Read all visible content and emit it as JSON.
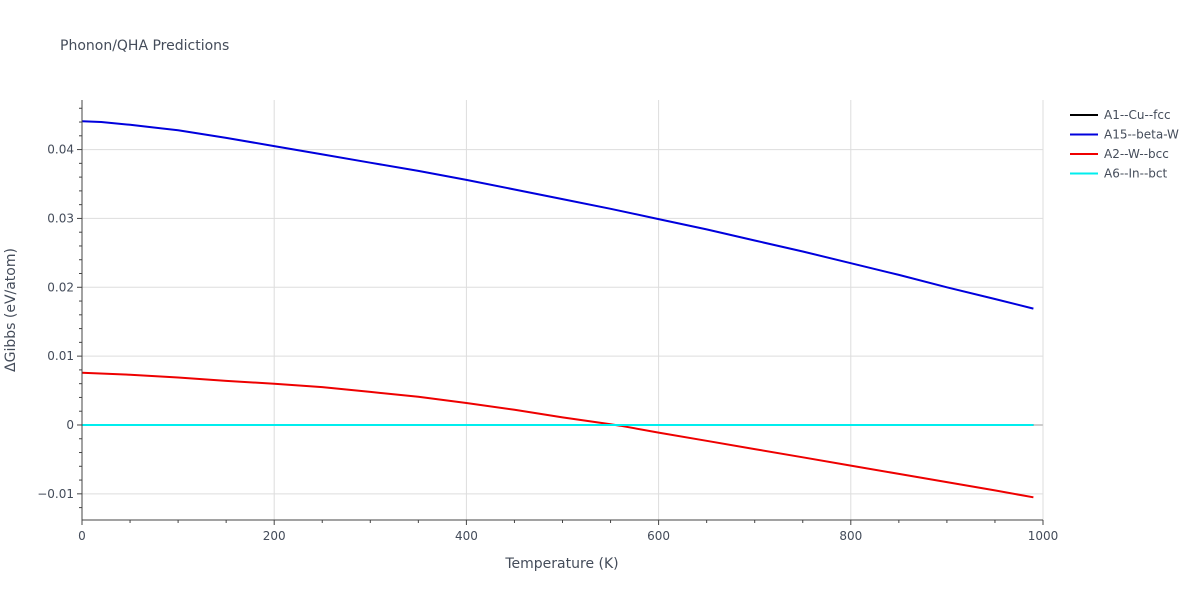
{
  "chart_data": {
    "type": "line",
    "title": "Phonon/QHA Predictions",
    "xlabel": "Temperature (K)",
    "ylabel": "ΔGibbs (eV/atom)",
    "xlim": [
      0,
      1000
    ],
    "ylim": [
      -0.0138,
      0.0472
    ],
    "x_ticks": [
      0,
      200,
      400,
      600,
      800,
      1000
    ],
    "x_tick_labels": [
      "0",
      "200",
      "400",
      "600",
      "800",
      "1000"
    ],
    "y_ticks": [
      -0.01,
      0,
      0.01,
      0.02,
      0.03,
      0.04
    ],
    "y_tick_labels": [
      "−0.01",
      "0",
      "0.01",
      "0.02",
      "0.03",
      "0.04"
    ],
    "grid": true,
    "legend_position": "top-right",
    "series": [
      {
        "name": "A1--Cu--fcc",
        "color": "#000000",
        "x": [
          0,
          990
        ],
        "y": [
          0,
          0
        ]
      },
      {
        "name": "A15--beta-W",
        "color": "#0000dd",
        "x": [
          0,
          20,
          50,
          100,
          150,
          200,
          250,
          300,
          350,
          400,
          450,
          500,
          550,
          600,
          650,
          700,
          750,
          800,
          850,
          900,
          950,
          990
        ],
        "y": [
          0.0441,
          0.044,
          0.0436,
          0.0428,
          0.0417,
          0.0405,
          0.0393,
          0.0381,
          0.0369,
          0.0356,
          0.0342,
          0.0328,
          0.0314,
          0.0299,
          0.0284,
          0.0268,
          0.0252,
          0.0235,
          0.0218,
          0.02,
          0.0183,
          0.0169
        ]
      },
      {
        "name": "A2--W--bcc",
        "color": "#ee0000",
        "x": [
          0,
          50,
          100,
          150,
          200,
          250,
          300,
          350,
          400,
          450,
          500,
          550,
          560,
          600,
          650,
          700,
          750,
          800,
          850,
          900,
          950,
          990
        ],
        "y": [
          0.0076,
          0.0073,
          0.0069,
          0.0064,
          0.006,
          0.0055,
          0.0048,
          0.0041,
          0.0032,
          0.0022,
          0.0011,
          0.0001,
          -0.0001,
          -0.0011,
          -0.0023,
          -0.0035,
          -0.0047,
          -0.0059,
          -0.0071,
          -0.0083,
          -0.0095,
          -0.0105
        ]
      },
      {
        "name": "A6--In--bct",
        "color": "#00eeee",
        "x": [
          0,
          990
        ],
        "y": [
          0,
          0
        ]
      }
    ]
  }
}
